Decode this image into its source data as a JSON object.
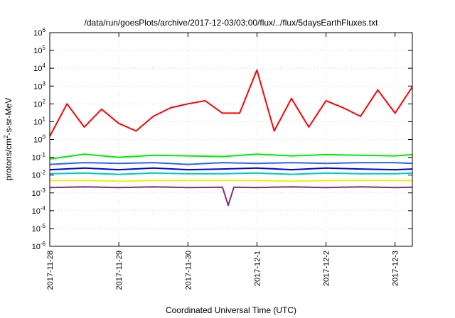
{
  "chart_data": {
    "type": "line",
    "title": "/data/run/goesPlots/archive/2017-12-03/03:00/flux/../flux/5daysEarthFluxes.txt",
    "xlabel": "Coordinated Universal Time (UTC)",
    "ylabel": {
      "main": "protons/cm",
      "sup": "2",
      "rest": "-s-sr-MeV"
    },
    "yscale": "log",
    "ylim": [
      1e-06,
      1000000.0
    ],
    "y_ticks": [
      {
        "value": 1000000.0,
        "base": "10",
        "exp": "6"
      },
      {
        "value": 100000.0,
        "base": "10",
        "exp": "5"
      },
      {
        "value": 10000.0,
        "base": "10",
        "exp": "4"
      },
      {
        "value": 1000.0,
        "base": "10",
        "exp": "3"
      },
      {
        "value": 100.0,
        "base": "10",
        "exp": "2"
      },
      {
        "value": 10.0,
        "base": "10",
        "exp": "1"
      },
      {
        "value": 1.0,
        "base": "10",
        "exp": "0"
      },
      {
        "value": 0.1,
        "base": "10",
        "exp": "-1"
      },
      {
        "value": 0.01,
        "base": "10",
        "exp": "-2"
      },
      {
        "value": 0.001,
        "base": "10",
        "exp": "-3"
      },
      {
        "value": 0.0001,
        "base": "10",
        "exp": "-4"
      },
      {
        "value": 1e-05,
        "base": "10",
        "exp": "-5"
      },
      {
        "value": 1e-06,
        "base": "10",
        "exp": "-6"
      }
    ],
    "xlim": [
      "2017-11-28",
      "2017-12-03 06:00"
    ],
    "x_ticks": [
      "2017-11-28",
      "2017-11-29",
      "2017-11-30",
      "2017-12-1",
      "2017-12-2",
      "2017-12-3"
    ],
    "grid": true,
    "legend": "none",
    "series": [
      {
        "color": "#ff0000",
        "x": [
          "2017-11-28 00:00",
          "2017-11-28 06:00",
          "2017-11-28 12:00",
          "2017-11-28 18:00",
          "2017-11-29 00:00",
          "2017-11-29 06:00",
          "2017-11-29 12:00",
          "2017-11-29 18:00",
          "2017-11-30 00:00",
          "2017-11-30 06:00",
          "2017-11-30 12:00",
          "2017-11-30 18:00",
          "2017-12-01 00:00",
          "2017-12-01 06:00",
          "2017-12-01 12:00",
          "2017-12-01 18:00",
          "2017-12-02 00:00",
          "2017-12-02 06:00",
          "2017-12-02 12:00",
          "2017-12-02 18:00",
          "2017-12-03 00:00",
          "2017-12-03 06:00"
        ],
        "values": [
          1.5,
          100,
          5,
          50,
          8,
          3,
          20,
          60,
          100,
          150,
          30,
          30,
          8000,
          3,
          200,
          5,
          150,
          60,
          20,
          600,
          30,
          900
        ]
      },
      {
        "color": "#00ee00",
        "x": [
          "2017-11-28 00:00",
          "2017-11-28 12:00",
          "2017-11-29 00:00",
          "2017-11-29 12:00",
          "2017-11-30 00:00",
          "2017-11-30 12:00",
          "2017-12-01 00:00",
          "2017-12-01 12:00",
          "2017-12-02 00:00",
          "2017-12-02 12:00",
          "2017-12-03 00:00",
          "2017-12-03 06:00"
        ],
        "values": [
          0.08,
          0.15,
          0.1,
          0.13,
          0.12,
          0.11,
          0.15,
          0.12,
          0.14,
          0.13,
          0.12,
          0.14
        ]
      },
      {
        "color": "#2a62ff",
        "x": [
          "2017-11-28 00:00",
          "2017-11-28 12:00",
          "2017-11-29 00:00",
          "2017-11-29 12:00",
          "2017-11-30 00:00",
          "2017-11-30 12:00",
          "2017-12-01 00:00",
          "2017-12-01 12:00",
          "2017-12-02 00:00",
          "2017-12-02 12:00",
          "2017-12-03 00:00",
          "2017-12-03 06:00"
        ],
        "values": [
          0.04,
          0.05,
          0.045,
          0.05,
          0.04,
          0.05,
          0.045,
          0.05,
          0.045,
          0.05,
          0.05,
          0.045
        ]
      },
      {
        "color": "#0000dd",
        "x": [
          "2017-11-28 00:00",
          "2017-11-28 12:00",
          "2017-11-29 00:00",
          "2017-11-29 12:00",
          "2017-11-30 00:00",
          "2017-11-30 12:00",
          "2017-12-01 00:00",
          "2017-12-01 12:00",
          "2017-12-02 00:00",
          "2017-12-02 12:00",
          "2017-12-03 00:00",
          "2017-12-03 06:00"
        ],
        "values": [
          0.02,
          0.025,
          0.02,
          0.025,
          0.02,
          0.022,
          0.025,
          0.02,
          0.025,
          0.022,
          0.02,
          0.022
        ]
      },
      {
        "color": "#00c8c8",
        "x": [
          "2017-11-28 00:00",
          "2017-11-28 12:00",
          "2017-11-29 00:00",
          "2017-11-29 12:00",
          "2017-11-30 00:00",
          "2017-11-30 12:00",
          "2017-12-01 00:00",
          "2017-12-01 12:00",
          "2017-12-02 00:00",
          "2017-12-02 12:00",
          "2017-12-03 00:00",
          "2017-12-03 06:00"
        ],
        "values": [
          0.012,
          0.013,
          0.011,
          0.013,
          0.012,
          0.012,
          0.013,
          0.011,
          0.013,
          0.012,
          0.012,
          0.013
        ]
      },
      {
        "color": "#f0f000",
        "x": [
          "2017-11-28 00:00",
          "2017-11-28 12:00",
          "2017-11-29 00:00",
          "2017-11-29 12:00",
          "2017-11-30 00:00",
          "2017-11-30 12:00",
          "2017-12-01 00:00",
          "2017-12-01 12:00",
          "2017-12-02 00:00",
          "2017-12-02 12:00",
          "2017-12-03 00:00",
          "2017-12-03 06:00"
        ],
        "values": [
          0.005,
          0.005,
          0.0045,
          0.005,
          0.005,
          0.005,
          0.005,
          0.0045,
          0.005,
          0.005,
          0.005,
          0.005
        ]
      },
      {
        "color": "#8b2a7a",
        "x": [
          "2017-11-28 00:00",
          "2017-11-28 12:00",
          "2017-11-29 00:00",
          "2017-11-29 12:00",
          "2017-11-30 00:00",
          "2017-11-30 12:00",
          "2017-11-30 14:00",
          "2017-11-30 16:00",
          "2017-12-01 00:00",
          "2017-12-01 12:00",
          "2017-12-02 00:00",
          "2017-12-02 12:00",
          "2017-12-03 00:00",
          "2017-12-03 06:00"
        ],
        "values": [
          0.002,
          0.0022,
          0.002,
          0.0022,
          0.002,
          0.0021,
          0.0002,
          0.0021,
          0.002,
          0.0022,
          0.002,
          0.0022,
          0.002,
          0.0021
        ]
      }
    ]
  }
}
